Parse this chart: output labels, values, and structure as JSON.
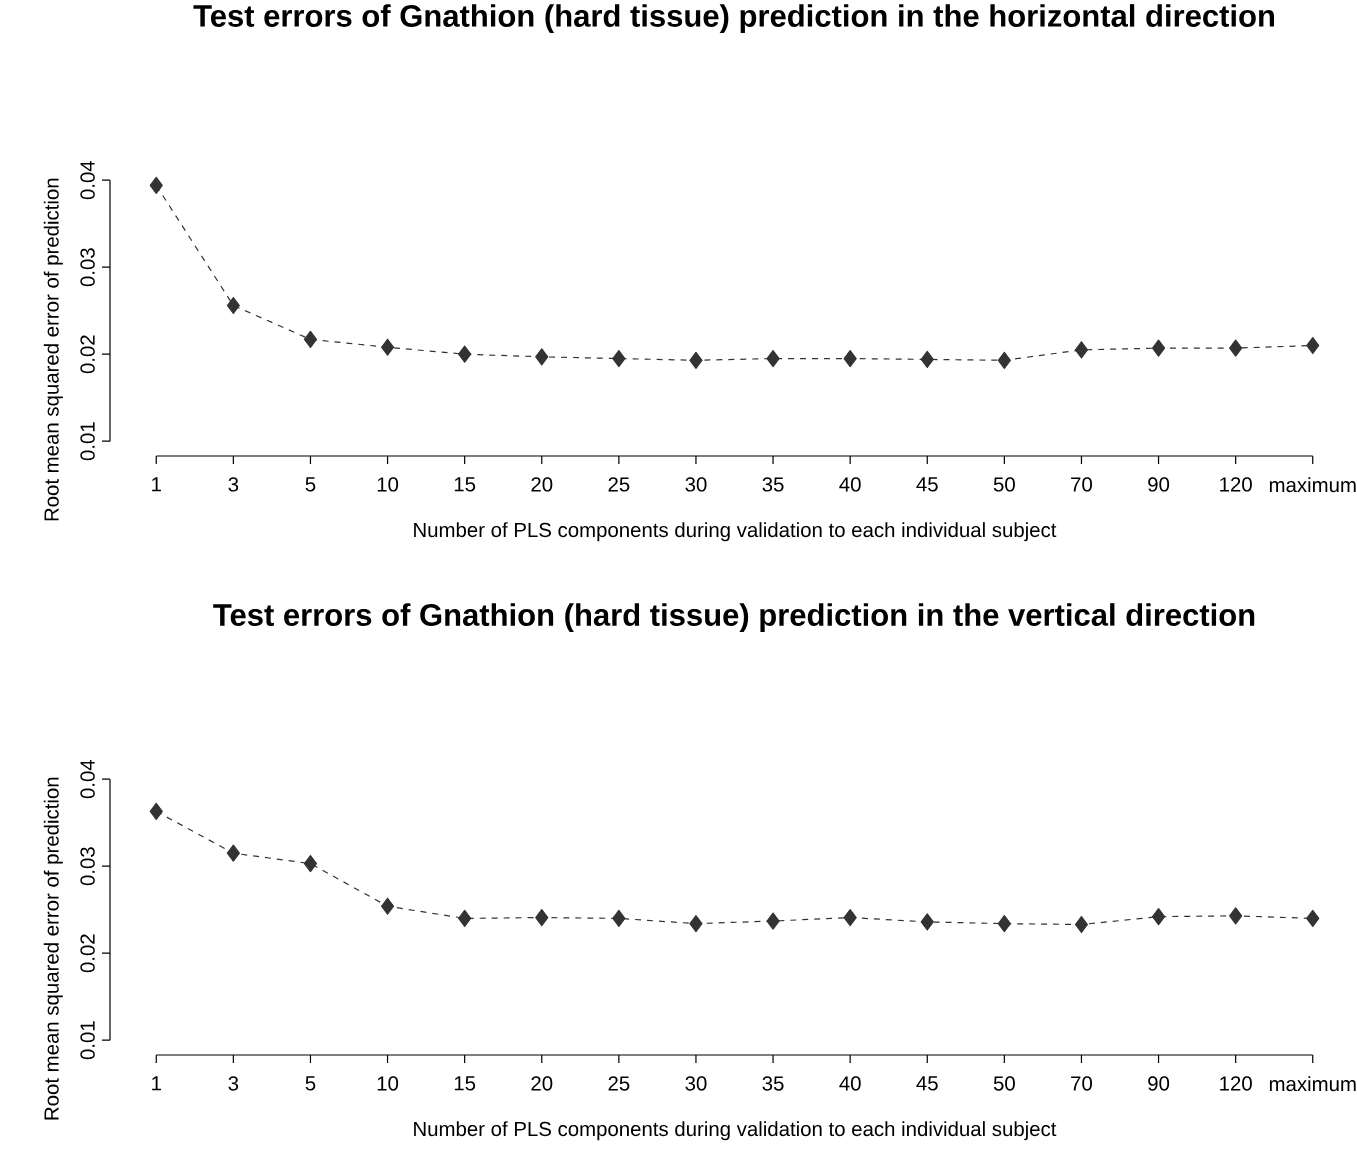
{
  "chart_data": [
    {
      "type": "line",
      "title": "Test errors of Gnathion (hard tissue) prediction in the horizontal direction",
      "xlabel": "Number of PLS components during validation to each individual subject",
      "ylabel": "Root mean squared error of prediction",
      "categories": [
        "1",
        "3",
        "5",
        "10",
        "15",
        "20",
        "25",
        "30",
        "35",
        "40",
        "45",
        "50",
        "70",
        "90",
        "120",
        "maximum"
      ],
      "values": [
        0.0394,
        0.0256,
        0.0217,
        0.0208,
        0.02,
        0.0197,
        0.0195,
        0.0193,
        0.0195,
        0.0195,
        0.0194,
        0.0193,
        0.0205,
        0.0207,
        0.0207,
        0.021
      ],
      "color": "#333333",
      "ylim": [
        0.0083,
        0.04
      ],
      "yticks": [
        0.01,
        0.02,
        0.03,
        0.04
      ],
      "marker": "diamond",
      "line_style": "dashed"
    },
    {
      "type": "line",
      "title": "Test errors of Gnathion (hard tissue) prediction in the vertical direction",
      "xlabel": "Number of PLS components during validation to each individual subject",
      "ylabel": "Root mean squared error of prediction",
      "categories": [
        "1",
        "3",
        "5",
        "10",
        "15",
        "20",
        "25",
        "30",
        "35",
        "40",
        "45",
        "50",
        "70",
        "90",
        "120",
        "maximum"
      ],
      "values": [
        0.0363,
        0.0315,
        0.0303,
        0.0254,
        0.024,
        0.0241,
        0.024,
        0.0234,
        0.0237,
        0.0241,
        0.0236,
        0.0234,
        0.0233,
        0.0242,
        0.0243,
        0.024
      ],
      "color": "#333333",
      "ylim": [
        0.0083,
        0.04
      ],
      "yticks": [
        0.01,
        0.02,
        0.03,
        0.04
      ],
      "marker": "diamond",
      "line_style": "dashed"
    }
  ]
}
